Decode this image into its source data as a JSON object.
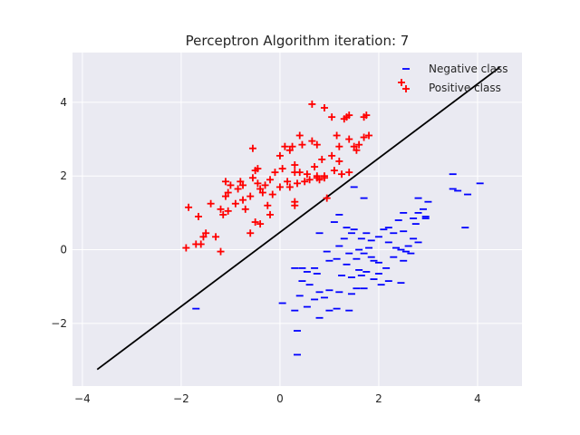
{
  "chart_data": {
    "type": "scatter",
    "title": "Perceptron Algorithm iteration: 7",
    "xlabel": "",
    "ylabel": "",
    "xlim": [
      -4.2,
      4.9
    ],
    "ylim": [
      -3.7,
      5.35
    ],
    "xticks": [
      -4,
      -2,
      0,
      2,
      4
    ],
    "yticks": [
      -2,
      0,
      2,
      4
    ],
    "xtick_labels": [
      "−4",
      "−2",
      "0",
      "2",
      "4"
    ],
    "ytick_labels": [
      "−2",
      "0",
      "2",
      "4"
    ],
    "grid": true,
    "legend_position": "top-right",
    "background_color": "#eaeaf2",
    "grid_color": "#ffffff",
    "decision_boundary": {
      "x": [
        -3.7,
        4.45
      ],
      "y": [
        -3.25,
        4.95
      ],
      "color": "#000000"
    },
    "series": [
      {
        "name": "Negative class",
        "marker": "_",
        "color": "#0000ff",
        "points": [
          [
            2.5,
            1.0
          ],
          [
            2.8,
            1.4
          ],
          [
            3.5,
            1.65
          ],
          [
            3.6,
            1.6
          ],
          [
            3.8,
            1.5
          ],
          [
            4.05,
            1.8
          ],
          [
            3.5,
            2.05
          ],
          [
            3.75,
            0.6
          ],
          [
            3.0,
            1.3
          ],
          [
            2.9,
            1.1
          ],
          [
            2.95,
            0.9
          ],
          [
            2.7,
            0.85
          ],
          [
            2.8,
            1.0
          ],
          [
            1.5,
            1.7
          ],
          [
            1.7,
            1.4
          ],
          [
            1.2,
            0.95
          ],
          [
            1.1,
            0.75
          ],
          [
            1.35,
            0.6
          ],
          [
            1.45,
            0.45
          ],
          [
            1.3,
            0.3
          ],
          [
            1.5,
            0.55
          ],
          [
            1.65,
            0.3
          ],
          [
            1.75,
            0.45
          ],
          [
            1.85,
            0.25
          ],
          [
            2.0,
            0.35
          ],
          [
            2.1,
            0.55
          ],
          [
            2.2,
            0.6
          ],
          [
            2.4,
            0.8
          ],
          [
            2.5,
            0.5
          ],
          [
            2.3,
            0.45
          ],
          [
            2.2,
            0.2
          ],
          [
            2.35,
            0.05
          ],
          [
            2.55,
            -0.05
          ],
          [
            2.7,
            0.3
          ],
          [
            2.6,
            0.1
          ],
          [
            2.8,
            0.2
          ],
          [
            0.8,
            0.45
          ],
          [
            1.2,
            0.1
          ],
          [
            1.4,
            -0.1
          ],
          [
            1.55,
            -0.25
          ],
          [
            1.7,
            -0.1
          ],
          [
            1.85,
            -0.2
          ],
          [
            2.0,
            -0.35
          ],
          [
            2.15,
            -0.5
          ],
          [
            2.3,
            -0.2
          ],
          [
            2.5,
            -0.3
          ],
          [
            2.45,
            0.0
          ],
          [
            2.65,
            -0.1
          ],
          [
            1.25,
            -0.7
          ],
          [
            1.45,
            -0.75
          ],
          [
            1.6,
            -0.55
          ],
          [
            1.75,
            -0.6
          ],
          [
            1.9,
            -0.8
          ],
          [
            2.05,
            -0.95
          ],
          [
            1.55,
            -1.05
          ],
          [
            1.7,
            -1.05
          ],
          [
            1.45,
            -1.2
          ],
          [
            1.2,
            -1.15
          ],
          [
            1.0,
            -1.1
          ],
          [
            0.9,
            -1.3
          ],
          [
            0.8,
            -1.15
          ],
          [
            0.7,
            -1.35
          ],
          [
            0.55,
            -1.55
          ],
          [
            0.4,
            -1.25
          ],
          [
            0.6,
            -0.95
          ],
          [
            0.75,
            -0.65
          ],
          [
            0.55,
            -0.6
          ],
          [
            0.45,
            -0.85
          ],
          [
            0.7,
            -0.5
          ],
          [
            0.45,
            -0.5
          ],
          [
            0.3,
            -0.5
          ],
          [
            1.0,
            -0.3
          ],
          [
            1.15,
            -0.25
          ],
          [
            0.95,
            -0.05
          ],
          [
            1.35,
            -0.4
          ],
          [
            1.65,
            -0.7
          ],
          [
            2.0,
            -0.65
          ],
          [
            2.2,
            -0.85
          ],
          [
            1.8,
            0.05
          ],
          [
            1.0,
            -1.65
          ],
          [
            1.15,
            -1.6
          ],
          [
            1.4,
            -1.65
          ],
          [
            0.8,
            -1.85
          ],
          [
            0.3,
            -1.65
          ],
          [
            0.05,
            -1.45
          ],
          [
            0.35,
            -2.2
          ],
          [
            0.35,
            -2.85
          ],
          [
            -1.7,
            -1.6
          ],
          [
            2.45,
            -0.9
          ],
          [
            1.9,
            -0.3
          ],
          [
            2.75,
            0.7
          ],
          [
            2.95,
            0.85
          ],
          [
            1.6,
            0.0
          ]
        ]
      },
      {
        "name": "Positive class",
        "marker": "+",
        "color": "#ff0000",
        "points": [
          [
            0.65,
            3.95
          ],
          [
            0.9,
            3.85
          ],
          [
            1.05,
            3.6
          ],
          [
            1.3,
            3.55
          ],
          [
            1.35,
            3.6
          ],
          [
            1.4,
            3.65
          ],
          [
            1.75,
            3.65
          ],
          [
            1.7,
            3.6
          ],
          [
            0.4,
            3.1
          ],
          [
            0.45,
            2.85
          ],
          [
            0.65,
            2.95
          ],
          [
            0.75,
            2.85
          ],
          [
            0.85,
            2.45
          ],
          [
            1.15,
            3.1
          ],
          [
            1.2,
            2.8
          ],
          [
            1.4,
            3.0
          ],
          [
            1.5,
            2.8
          ],
          [
            1.6,
            2.85
          ],
          [
            1.7,
            3.05
          ],
          [
            1.8,
            3.1
          ],
          [
            1.55,
            2.7
          ],
          [
            1.05,
            2.55
          ],
          [
            0.1,
            2.8
          ],
          [
            0.25,
            2.8
          ],
          [
            0.2,
            2.7
          ],
          [
            0.0,
            2.55
          ],
          [
            0.3,
            2.3
          ],
          [
            0.4,
            2.1
          ],
          [
            0.55,
            2.05
          ],
          [
            0.7,
            2.25
          ],
          [
            0.75,
            2.0
          ],
          [
            0.8,
            1.9
          ],
          [
            0.9,
            1.95
          ],
          [
            0.6,
            1.9
          ],
          [
            0.35,
            1.8
          ],
          [
            0.15,
            1.85
          ],
          [
            0.2,
            1.7
          ],
          [
            0.05,
            2.2
          ],
          [
            -0.1,
            2.1
          ],
          [
            -0.2,
            1.9
          ],
          [
            -0.3,
            1.75
          ],
          [
            -0.45,
            1.8
          ],
          [
            -0.55,
            1.95
          ],
          [
            -0.5,
            2.15
          ],
          [
            -0.45,
            2.2
          ],
          [
            -0.55,
            2.75
          ],
          [
            0.0,
            1.7
          ],
          [
            -0.15,
            1.5
          ],
          [
            -0.35,
            1.55
          ],
          [
            -0.4,
            1.65
          ],
          [
            -0.6,
            1.45
          ],
          [
            -0.75,
            1.75
          ],
          [
            -0.85,
            1.65
          ],
          [
            -0.8,
            1.85
          ],
          [
            -1.0,
            1.75
          ],
          [
            -1.05,
            1.55
          ],
          [
            -1.1,
            1.45
          ],
          [
            -0.75,
            1.35
          ],
          [
            -0.9,
            1.25
          ],
          [
            -1.05,
            1.05
          ],
          [
            -1.15,
            0.95
          ],
          [
            -1.2,
            1.1
          ],
          [
            -0.7,
            1.1
          ],
          [
            -0.25,
            1.2
          ],
          [
            -0.2,
            0.95
          ],
          [
            -0.5,
            0.75
          ],
          [
            -0.6,
            0.45
          ],
          [
            -0.4,
            0.7
          ],
          [
            -1.1,
            1.85
          ],
          [
            -1.4,
            1.25
          ],
          [
            -1.5,
            0.45
          ],
          [
            -1.55,
            0.35
          ],
          [
            -1.3,
            0.35
          ],
          [
            -1.6,
            0.15
          ],
          [
            -1.7,
            0.15
          ],
          [
            -1.65,
            0.9
          ],
          [
            -1.85,
            1.15
          ],
          [
            -1.9,
            0.05
          ],
          [
            -1.2,
            -0.05
          ],
          [
            0.5,
            1.85
          ],
          [
            0.95,
            1.4
          ],
          [
            0.3,
            1.3
          ],
          [
            0.3,
            1.2
          ],
          [
            0.75,
            1.95
          ],
          [
            1.4,
            2.1
          ],
          [
            1.2,
            2.4
          ],
          [
            0.3,
            2.1
          ],
          [
            0.9,
            2.0
          ],
          [
            1.1,
            2.15
          ],
          [
            1.25,
            2.05
          ]
        ]
      }
    ]
  }
}
